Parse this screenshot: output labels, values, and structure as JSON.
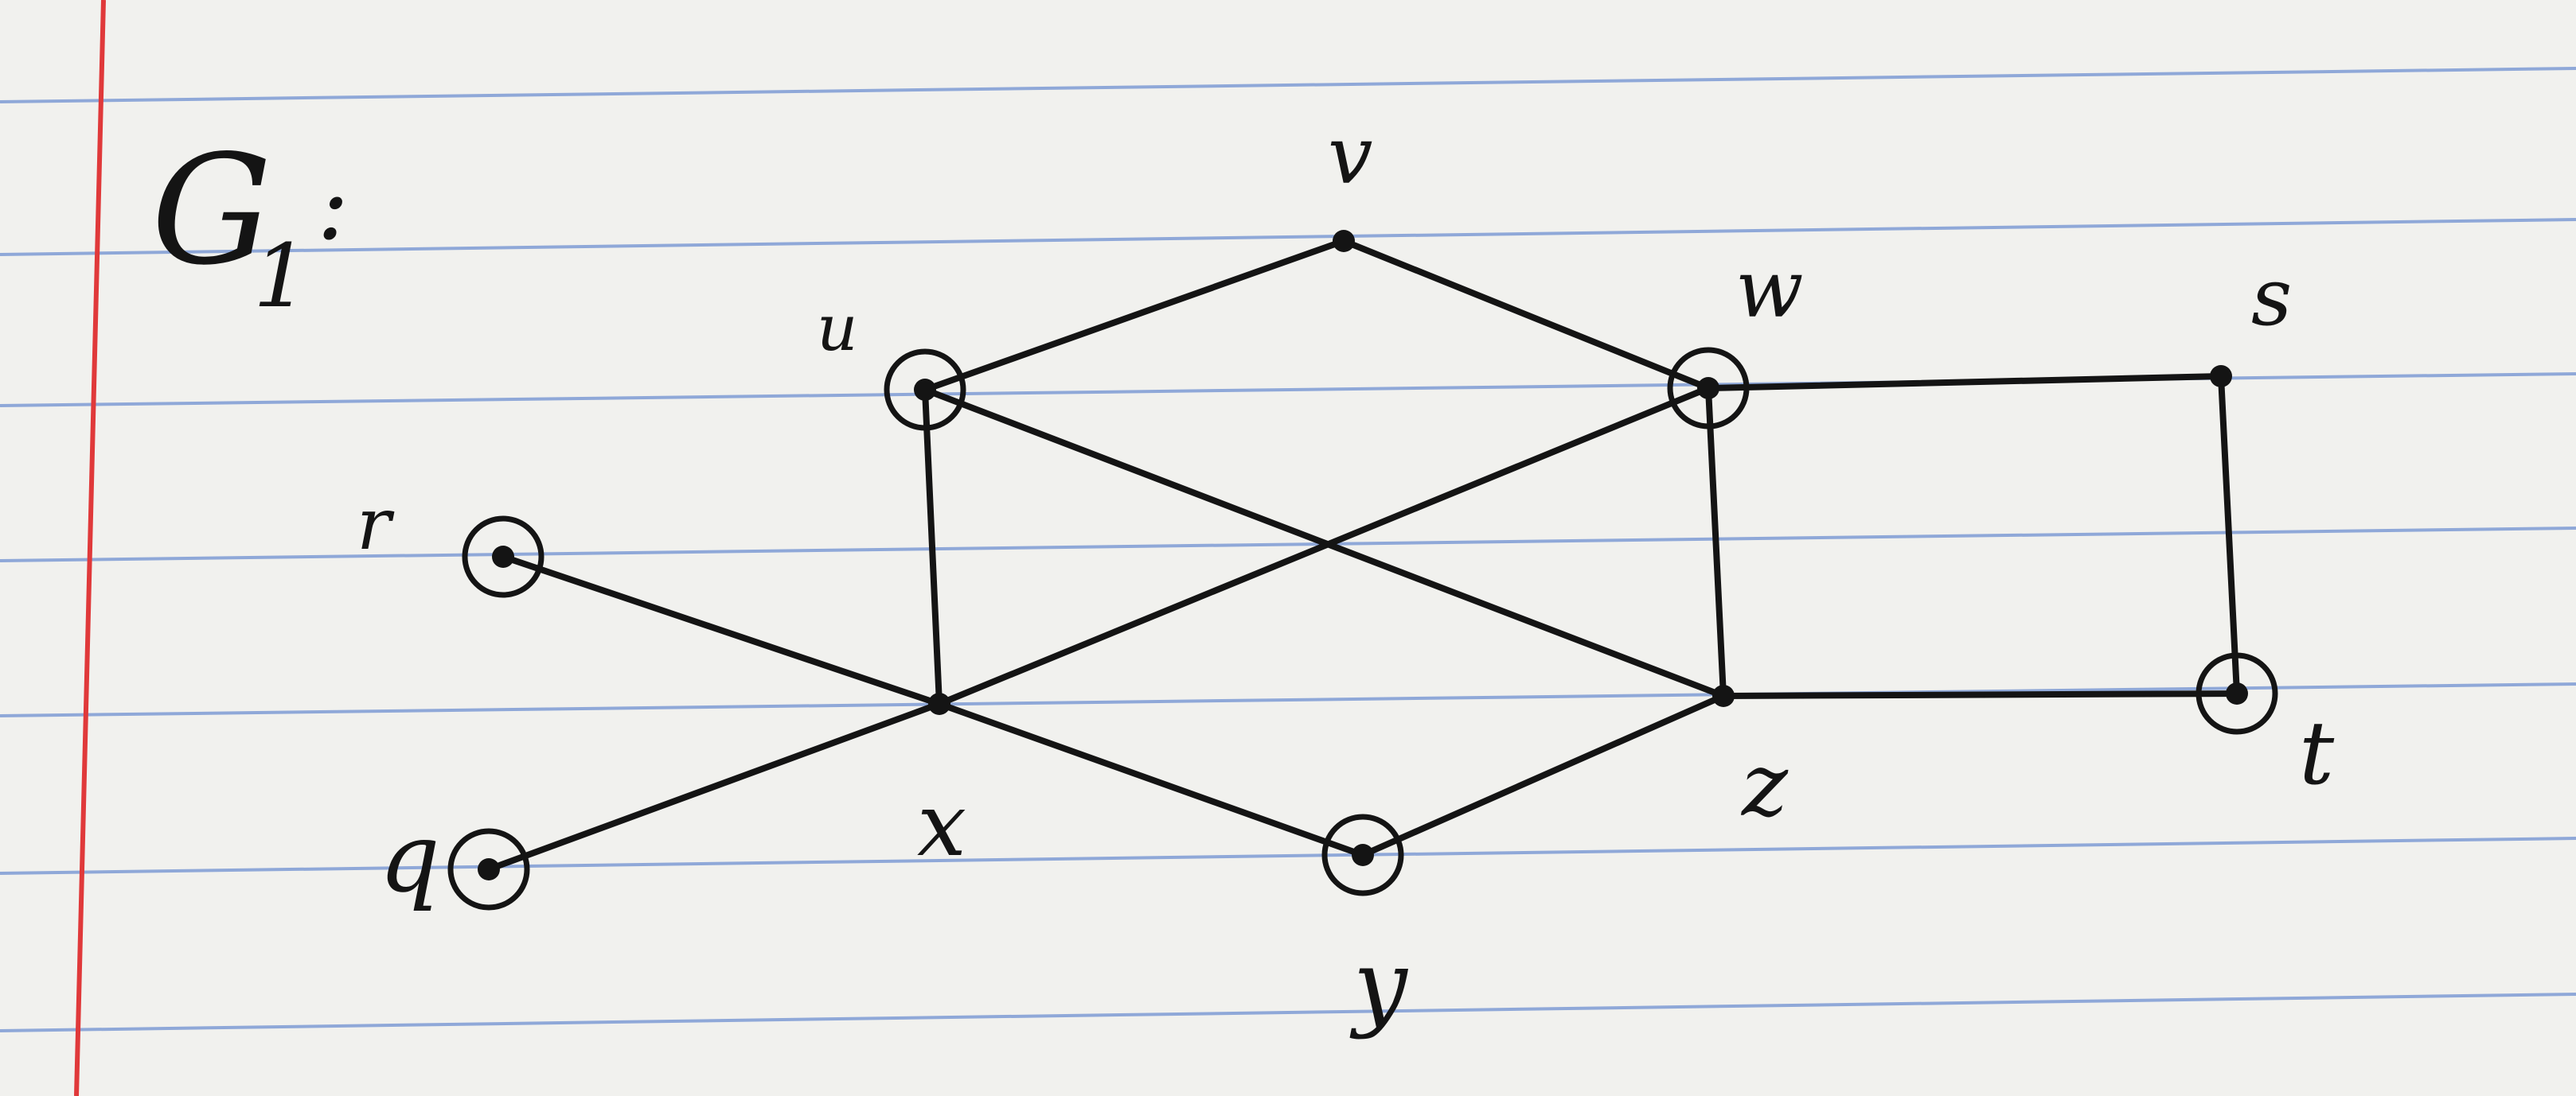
{
  "title": {
    "base": "G",
    "subscript": "1",
    "colon": ":"
  },
  "vertices": [
    {
      "id": "v",
      "label": "v",
      "circled": false
    },
    {
      "id": "u",
      "label": "u",
      "circled": true
    },
    {
      "id": "w",
      "label": "w",
      "circled": true
    },
    {
      "id": "s",
      "label": "s",
      "circled": false
    },
    {
      "id": "r",
      "label": "r",
      "circled": true
    },
    {
      "id": "x",
      "label": "x",
      "circled": false
    },
    {
      "id": "z",
      "label": "z",
      "circled": false
    },
    {
      "id": "t",
      "label": "t",
      "circled": true
    },
    {
      "id": "q",
      "label": "q",
      "circled": true
    },
    {
      "id": "y",
      "label": "y",
      "circled": true
    }
  ],
  "edges": [
    [
      "u",
      "v"
    ],
    [
      "v",
      "w"
    ],
    [
      "w",
      "s"
    ],
    [
      "s",
      "t"
    ],
    [
      "u",
      "x"
    ],
    [
      "u",
      "z"
    ],
    [
      "w",
      "x"
    ],
    [
      "w",
      "z"
    ],
    [
      "r",
      "x"
    ],
    [
      "q",
      "x"
    ],
    [
      "x",
      "y"
    ],
    [
      "y",
      "z"
    ],
    [
      "z",
      "t"
    ]
  ],
  "colors": {
    "ink": "#141414",
    "paper": "#f1f1ee",
    "rule_line": "#8fa8d8",
    "margin_line": "#e0393a"
  }
}
